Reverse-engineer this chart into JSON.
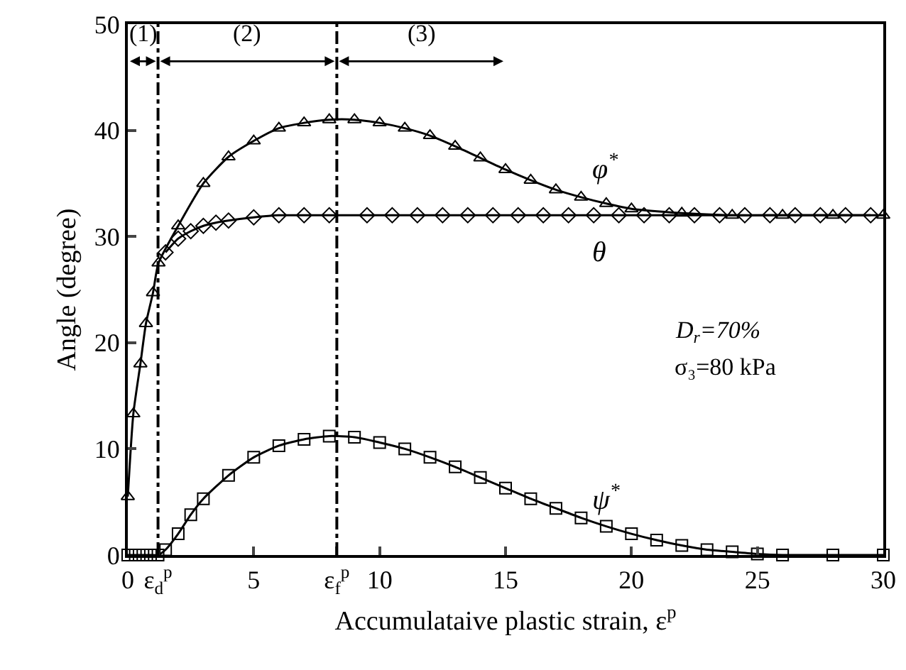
{
  "chart_data": {
    "type": "line",
    "xlabel": "Accumulataive plastic strain, ε$^{p}$",
    "ylabel": "Angle (degree)",
    "xlim": [
      0,
      30
    ],
    "ylim": [
      0,
      50
    ],
    "xticks": [
      0,
      {
        "value": 1.2,
        "label": "ε$_{d}$$^{p}$"
      },
      5,
      {
        "value": 8.3,
        "label": "ε$_{f}$$^{p}$"
      },
      10,
      15,
      20,
      25,
      30
    ],
    "yticks": [
      0,
      10,
      20,
      30,
      40,
      50
    ],
    "grid": false,
    "series": [
      {
        "color": "#000000",
        "marker": "triangle",
        "x": [
          0,
          0.22,
          0.5,
          0.72,
          1.0,
          1.22,
          2,
          3,
          4,
          5,
          6,
          7,
          8,
          9,
          10,
          11,
          12,
          13,
          14,
          15,
          16,
          17,
          18,
          19,
          20,
          22,
          24,
          26,
          28,
          30
        ],
        "values": [
          5.5,
          13.3,
          18,
          21.8,
          24.7,
          27.5,
          31,
          35,
          37.5,
          39,
          40.2,
          40.7,
          41,
          41,
          40.7,
          40.2,
          39.5,
          38.5,
          37.4,
          36.3,
          35.3,
          34.4,
          33.7,
          33.1,
          32.6,
          32.2,
          32,
          32,
          32,
          32
        ]
      },
      {
        "color": "#000000",
        "marker": "diamond",
        "x": [
          1.5,
          2,
          2.5,
          3,
          3.5,
          4,
          5,
          6,
          7,
          8,
          9.5,
          10.5,
          11.5,
          12.5,
          13.5,
          14.5,
          15.5,
          16.5,
          17.5,
          18.5,
          19.5,
          20.5,
          21.5,
          22.5,
          23.5,
          24.5,
          25.5,
          26.5,
          27.5,
          28.5,
          29.5
        ],
        "values": [
          28.5,
          29.8,
          30.5,
          31,
          31.3,
          31.5,
          31.8,
          32,
          32,
          32,
          32,
          32,
          32,
          32,
          32,
          32,
          32,
          32,
          32,
          32,
          32,
          32,
          32,
          32,
          32,
          32,
          32,
          32,
          32,
          32,
          32
        ]
      },
      {
        "color": "#000000",
        "marker": "square",
        "x": [
          0,
          0.3,
          0.6,
          0.9,
          1.2,
          1.5,
          2,
          2.5,
          3,
          4,
          5,
          6,
          7,
          8,
          9,
          10,
          11,
          12,
          13,
          14,
          15,
          16,
          17,
          18,
          19,
          20,
          21,
          22,
          23,
          24,
          25,
          26,
          28,
          30
        ],
        "values": [
          0,
          0,
          0,
          0,
          0,
          0.5,
          2,
          3.8,
          5.3,
          7.5,
          9.2,
          10.3,
          10.9,
          11.2,
          11.1,
          10.6,
          10,
          9.2,
          8.3,
          7.3,
          6.3,
          5.3,
          4.4,
          3.5,
          2.7,
          2,
          1.4,
          0.9,
          0.5,
          0.3,
          0.1,
          0,
          0,
          0
        ]
      }
    ],
    "ref_lines": [
      {
        "axis": "x",
        "value": 1.2,
        "line_style": "dashdot",
        "color": "#000000"
      },
      {
        "axis": "x",
        "value": 8.3,
        "line_style": "dashdot",
        "color": "#000000"
      }
    ],
    "annotations": [
      "(1)",
      "(2)",
      "(3)",
      "φ$^{*}$",
      "θ",
      "ψ$^{*}$",
      "D$_{r}$=70%",
      "σ₃=80 kPa"
    ]
  }
}
